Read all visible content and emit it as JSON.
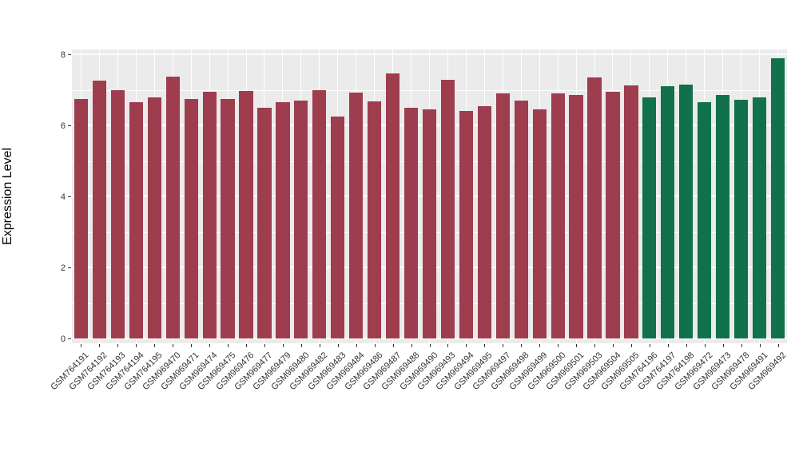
{
  "chart_data": {
    "type": "bar",
    "title": "",
    "xlabel": "",
    "ylabel": "Expression Level",
    "ylim": [
      0,
      8
    ],
    "yticks": [
      "0",
      "2",
      "4",
      "6",
      "8"
    ],
    "ytick_values": [
      0,
      2,
      4,
      6,
      8
    ],
    "minor_tick_values": [
      1,
      3,
      5,
      7
    ],
    "grid": "on",
    "legend_position": "none",
    "panel_bg": "#EBEBEB",
    "grid_color": "#FFFFFF",
    "axis_text_color": "#333333",
    "categories": [
      "GSM764191",
      "GSM764192",
      "GSM764193",
      "GSM764194",
      "GSM764195",
      "GSM969470",
      "GSM969471",
      "GSM969474",
      "GSM969475",
      "GSM969476",
      "GSM969477",
      "GSM969479",
      "GSM969480",
      "GSM969482",
      "GSM969483",
      "GSM969484",
      "GSM969486",
      "GSM969487",
      "GSM969488",
      "GSM969490",
      "GSM969493",
      "GSM969494",
      "GSM969495",
      "GSM969497",
      "GSM969498",
      "GSM969499",
      "GSM969500",
      "GSM969501",
      "GSM969503",
      "GSM969504",
      "GSM969505",
      "GSM764196",
      "GSM764197",
      "GSM764198",
      "GSM969472",
      "GSM969473",
      "GSM969478",
      "GSM969491",
      "GSM969492"
    ],
    "values": [
      6.75,
      7.25,
      7.0,
      6.65,
      6.78,
      7.38,
      6.75,
      6.95,
      6.75,
      6.97,
      6.5,
      6.65,
      6.7,
      7.0,
      6.25,
      6.92,
      6.67,
      7.45,
      6.5,
      6.45,
      7.28,
      6.4,
      6.55,
      6.9,
      6.7,
      6.45,
      6.9,
      6.85,
      7.35,
      6.95,
      7.12,
      6.78,
      7.1,
      7.15,
      6.65,
      6.85,
      6.73,
      6.78,
      7.88
    ],
    "groups": [
      "maroon",
      "maroon",
      "maroon",
      "maroon",
      "maroon",
      "maroon",
      "maroon",
      "maroon",
      "maroon",
      "maroon",
      "maroon",
      "maroon",
      "maroon",
      "maroon",
      "maroon",
      "maroon",
      "maroon",
      "maroon",
      "maroon",
      "maroon",
      "maroon",
      "maroon",
      "maroon",
      "maroon",
      "maroon",
      "maroon",
      "maroon",
      "maroon",
      "maroon",
      "maroon",
      "maroon",
      "green",
      "green",
      "green",
      "green",
      "green",
      "green",
      "green",
      "green"
    ],
    "palette": {
      "maroon": "#9E3D4E",
      "green": "#11714B"
    }
  }
}
